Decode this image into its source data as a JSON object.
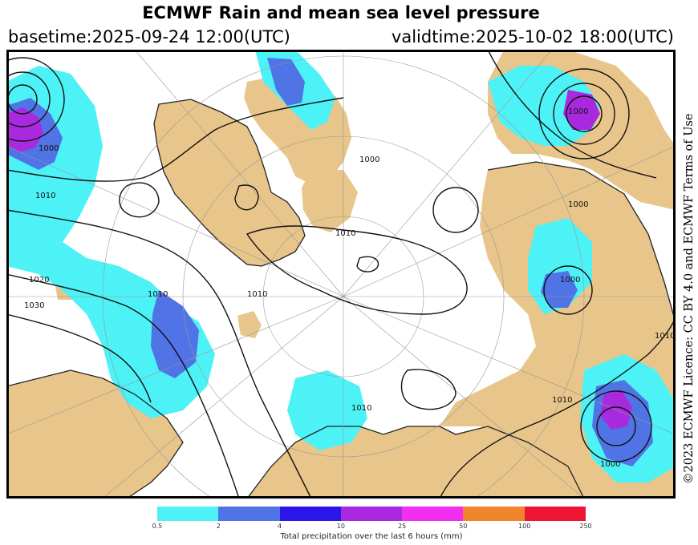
{
  "title": "ECMWF Rain and mean sea level pressure",
  "basetime": "basetime:2025-09-24 12:00(UTC)",
  "validtime": "validtime:2025-10-02 18:00(UTC)",
  "credit": "©2023 ECMWF Licence: CC BY 4.0 and ECMWF Terms of Use",
  "map": {
    "projection": "polar-stereographic",
    "colors": {
      "ocean": "#ffffff",
      "land": "#e8c58a",
      "coast": "#222222",
      "isobar": "#111111",
      "graticule": "#999999"
    },
    "isobar_labels": [
      "1000",
      "1010",
      "1020",
      "1030",
      "1010",
      "1010",
      "1000",
      "1010",
      "1010",
      "1000",
      "1000",
      "1010",
      "1000",
      "1010",
      "1000"
    ]
  },
  "legend": {
    "caption": "Total precipitation over the last 6 hours (mm)",
    "bins": [
      {
        "color": "#4df2f6"
      },
      {
        "color": "#5073e6"
      },
      {
        "color": "#2a16e8"
      },
      {
        "color": "#a92ade"
      },
      {
        "color": "#f22ef0"
      },
      {
        "color": "#f0852e"
      },
      {
        "color": "#ee1635"
      }
    ],
    "ticks": [
      "0.5",
      "2",
      "4",
      "10",
      "25",
      "50",
      "100",
      "250"
    ]
  }
}
